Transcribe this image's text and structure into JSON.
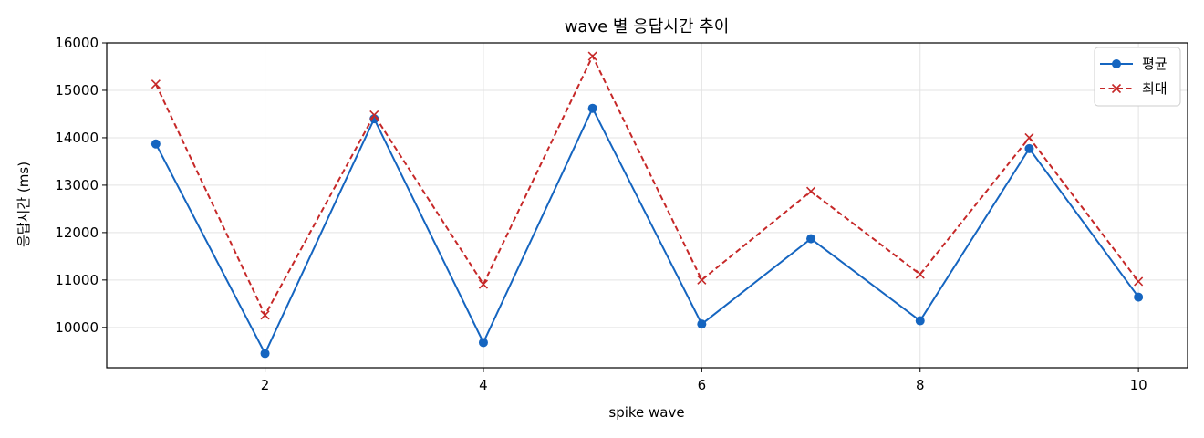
{
  "chart_data": {
    "type": "line",
    "title": "wave 별 응답시간 추이",
    "xlabel": "spike wave",
    "ylabel": "응답시간 (ms)",
    "x": [
      1,
      2,
      3,
      4,
      5,
      6,
      7,
      8,
      9,
      10
    ],
    "xticks": [
      2,
      4,
      6,
      8,
      10
    ],
    "yticks": [
      10000,
      11000,
      12000,
      13000,
      14000,
      15000,
      16000
    ],
    "xlim": [
      0.55,
      10.45
    ],
    "ylim": [
      9150,
      16000
    ],
    "grid": true,
    "legend_position": "top-right",
    "series": [
      {
        "name": "평균",
        "color": "#1565c0",
        "style": "solid",
        "marker": "circle",
        "values": [
          13870,
          9450,
          14400,
          9680,
          14620,
          10070,
          11870,
          10140,
          13770,
          10640
        ]
      },
      {
        "name": "최대",
        "color": "#c62828",
        "style": "dashed",
        "marker": "x",
        "values": [
          15130,
          10260,
          14480,
          10910,
          15720,
          11000,
          12870,
          11120,
          14000,
          10970
        ]
      }
    ]
  }
}
